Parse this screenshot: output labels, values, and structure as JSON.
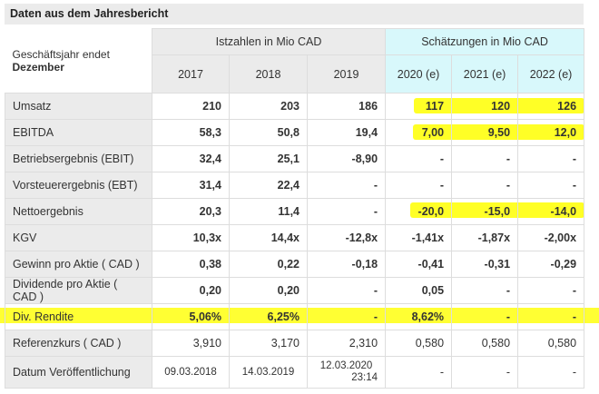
{
  "title": "Daten aus dem Jahresbericht",
  "header": {
    "label_line1": "Geschäftsjahr endet",
    "label_line2": "Dezember",
    "group_actual": "Istzahlen in Mio CAD",
    "group_estimates": "Schätzungen in Mio CAD",
    "years": [
      "2017",
      "2018",
      "2019",
      "2020 (e)",
      "2021 (e)",
      "2022 (e)"
    ]
  },
  "highlight_color": "#ffff00",
  "rows": [
    {
      "label": "Umsatz",
      "values": [
        "210",
        "203",
        "186",
        "117",
        "120",
        "126"
      ]
    },
    {
      "label": "EBITDA",
      "values": [
        "58,3",
        "50,8",
        "19,4",
        "7,00",
        "9,50",
        "12,0"
      ]
    },
    {
      "label": "Betriebsergebnis (EBIT)",
      "values": [
        "32,4",
        "25,1",
        "-8,90",
        "-",
        "-",
        "-"
      ]
    },
    {
      "label": "Vorsteuerergebnis (EBT)",
      "values": [
        "31,4",
        "22,4",
        "-",
        "-",
        "-",
        "-"
      ]
    },
    {
      "label": "Nettoergebnis",
      "values": [
        "20,3",
        "11,4",
        "-",
        "-20,0",
        "-15,0",
        "-14,0"
      ]
    },
    {
      "label": "KGV",
      "values": [
        "10,3x",
        "14,4x",
        "-12,8x",
        "-1,41x",
        "-1,87x",
        "-2,00x"
      ]
    },
    {
      "label": "Gewinn pro Aktie ( CAD )",
      "values": [
        "0,38",
        "0,22",
        "-0,18",
        "-0,41",
        "-0,31",
        "-0,29"
      ]
    },
    {
      "label": "Dividende pro Aktie ( CAD )",
      "values": [
        "0,20",
        "0,20",
        "-",
        "0,05",
        "-",
        "-"
      ]
    },
    {
      "label": "Div. Rendite",
      "values": [
        "5,06%",
        "6,25%",
        "-",
        "8,62%",
        "-",
        "-"
      ]
    },
    {
      "label": "Referenzkurs ( CAD )",
      "values": [
        "3,910",
        "3,170",
        "2,310",
        "0,580",
        "0,580",
        "0,580"
      ]
    },
    {
      "label": "Datum Veröffentlichung",
      "values": [
        "09.03.2018",
        "14.03.2019",
        "12.03.2020",
        "-",
        "-",
        "-"
      ],
      "extra": "23:14"
    }
  ]
}
